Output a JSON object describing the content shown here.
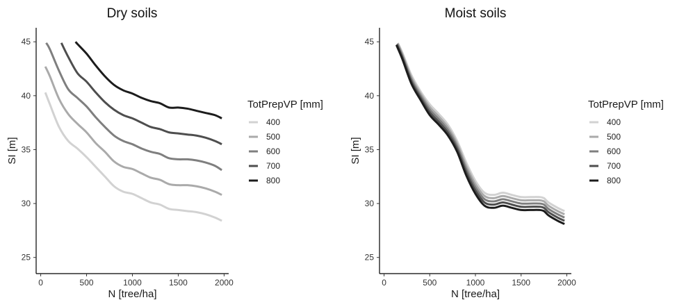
{
  "legend_title": "TotPrepVP [mm]",
  "series_colors": [
    "#d2d2d2",
    "#aaaaaa",
    "#7f7f7f",
    "#4e4e4e",
    "#1c1c1c"
  ],
  "chart_data": [
    {
      "type": "line",
      "title": "Dry soils",
      "xlabel": "N [tree/ha]",
      "ylabel": "SI [m]",
      "xlim": [
        -50,
        2050
      ],
      "ylim": [
        23.5,
        46.3
      ],
      "xticks": [
        "0",
        "500",
        "1000",
        "1500",
        "2000"
      ],
      "yticks": [
        "25",
        "30",
        "35",
        "40",
        "45"
      ],
      "grid": false,
      "legend_position": "right",
      "series": [
        {
          "name": "400",
          "x": [
            50,
            100,
            200,
            300,
            400,
            500,
            600,
            700,
            800,
            900,
            1000,
            1100,
            1200,
            1300,
            1400,
            1500,
            1600,
            1700,
            1800,
            1900,
            1975
          ],
          "y": [
            40.3,
            39.2,
            37.1,
            35.8,
            35.1,
            34.3,
            33.4,
            32.5,
            31.6,
            31.1,
            30.9,
            30.5,
            30.1,
            29.9,
            29.5,
            29.4,
            29.3,
            29.2,
            29.0,
            28.7,
            28.4
          ]
        },
        {
          "name": "500",
          "x": [
            50,
            100,
            200,
            300,
            400,
            500,
            600,
            700,
            800,
            900,
            1000,
            1100,
            1200,
            1300,
            1400,
            1500,
            1600,
            1700,
            1800,
            1900,
            1975
          ],
          "y": [
            42.7,
            41.8,
            39.7,
            38.3,
            37.4,
            36.6,
            35.6,
            34.8,
            33.9,
            33.4,
            33.2,
            32.8,
            32.4,
            32.2,
            31.8,
            31.7,
            31.7,
            31.6,
            31.4,
            31.1,
            30.8
          ]
        },
        {
          "name": "600",
          "x": [
            60,
            100,
            200,
            300,
            400,
            500,
            600,
            700,
            800,
            900,
            1000,
            1100,
            1200,
            1300,
            1400,
            1500,
            1600,
            1700,
            1800,
            1900,
            1975
          ],
          "y": [
            44.9,
            44.3,
            42.3,
            40.6,
            39.8,
            39.0,
            38.0,
            37.1,
            36.3,
            35.8,
            35.5,
            35.1,
            34.8,
            34.6,
            34.2,
            34.1,
            34.1,
            34.0,
            33.8,
            33.5,
            33.1
          ]
        },
        {
          "name": "700",
          "x": [
            225,
            300,
            400,
            500,
            600,
            700,
            800,
            900,
            1000,
            1100,
            1200,
            1300,
            1400,
            1500,
            1600,
            1700,
            1800,
            1900,
            1975
          ],
          "y": [
            44.9,
            43.6,
            42.1,
            41.3,
            40.3,
            39.4,
            38.7,
            38.2,
            37.9,
            37.5,
            37.1,
            36.9,
            36.6,
            36.5,
            36.4,
            36.3,
            36.1,
            35.8,
            35.5
          ]
        },
        {
          "name": "800",
          "x": [
            380,
            400,
            500,
            600,
            700,
            800,
            900,
            1000,
            1100,
            1200,
            1300,
            1400,
            1500,
            1600,
            1700,
            1800,
            1900,
            1975
          ],
          "y": [
            45.0,
            44.8,
            43.9,
            42.8,
            41.8,
            41.0,
            40.5,
            40.2,
            39.8,
            39.5,
            39.3,
            38.9,
            38.9,
            38.8,
            38.6,
            38.4,
            38.2,
            37.9
          ]
        }
      ]
    },
    {
      "type": "line",
      "title": "Moist soils",
      "xlabel": "N [tree/ha]",
      "ylabel": "SI [m]",
      "xlim": [
        -50,
        2050
      ],
      "ylim": [
        23.5,
        46.3
      ],
      "xticks": [
        "0",
        "500",
        "1000",
        "1500",
        "2000"
      ],
      "yticks": [
        "25",
        "30",
        "35",
        "40",
        "45"
      ],
      "grid": false,
      "legend_position": "right",
      "series": [
        {
          "name": "400",
          "x": [
            150,
            200,
            300,
            400,
            500,
            600,
            700,
            800,
            900,
            1000,
            1100,
            1200,
            1300,
            1400,
            1500,
            1600,
            1700,
            1750,
            1800,
            1900,
            1975
          ],
          "y": [
            44.9,
            44.0,
            41.9,
            40.4,
            39.2,
            38.3,
            37.3,
            35.8,
            33.8,
            32.1,
            31.0,
            30.8,
            31.0,
            30.8,
            30.6,
            30.6,
            30.6,
            30.5,
            30.1,
            29.6,
            29.3
          ]
        },
        {
          "name": "500",
          "x": [
            150,
            200,
            300,
            400,
            500,
            600,
            700,
            800,
            900,
            1000,
            1100,
            1200,
            1300,
            1400,
            1500,
            1600,
            1700,
            1750,
            1800,
            1900,
            1975
          ],
          "y": [
            44.85,
            43.85,
            41.7,
            40.2,
            38.95,
            38.05,
            37.05,
            35.55,
            33.5,
            31.8,
            30.7,
            30.5,
            30.7,
            30.5,
            30.3,
            30.3,
            30.3,
            30.2,
            29.8,
            29.3,
            29.0
          ]
        },
        {
          "name": "600",
          "x": [
            145,
            200,
            300,
            400,
            500,
            600,
            700,
            800,
            900,
            1000,
            1100,
            1200,
            1300,
            1400,
            1500,
            1600,
            1700,
            1750,
            1800,
            1900,
            1975
          ],
          "y": [
            44.8,
            43.7,
            41.5,
            40.0,
            38.7,
            37.8,
            36.8,
            35.3,
            33.2,
            31.5,
            30.4,
            30.2,
            30.4,
            30.2,
            30.0,
            30.0,
            30.0,
            29.9,
            29.5,
            29.0,
            28.7
          ]
        },
        {
          "name": "700",
          "x": [
            140,
            200,
            300,
            400,
            500,
            600,
            700,
            800,
            900,
            1000,
            1100,
            1200,
            1300,
            1400,
            1500,
            1600,
            1700,
            1750,
            1800,
            1900,
            1975
          ],
          "y": [
            44.75,
            43.55,
            41.3,
            39.8,
            38.45,
            37.55,
            36.55,
            35.05,
            32.9,
            31.2,
            30.1,
            29.9,
            30.1,
            29.9,
            29.7,
            29.7,
            29.7,
            29.6,
            29.2,
            28.7,
            28.4
          ]
        },
        {
          "name": "800",
          "x": [
            135,
            200,
            300,
            400,
            500,
            600,
            700,
            800,
            900,
            1000,
            1100,
            1200,
            1300,
            1400,
            1500,
            1600,
            1700,
            1750,
            1800,
            1900,
            1975
          ],
          "y": [
            44.7,
            43.4,
            41.1,
            39.6,
            38.2,
            37.3,
            36.3,
            34.8,
            32.6,
            30.9,
            29.8,
            29.6,
            29.8,
            29.6,
            29.4,
            29.4,
            29.4,
            29.3,
            28.9,
            28.4,
            28.1
          ]
        }
      ]
    }
  ]
}
